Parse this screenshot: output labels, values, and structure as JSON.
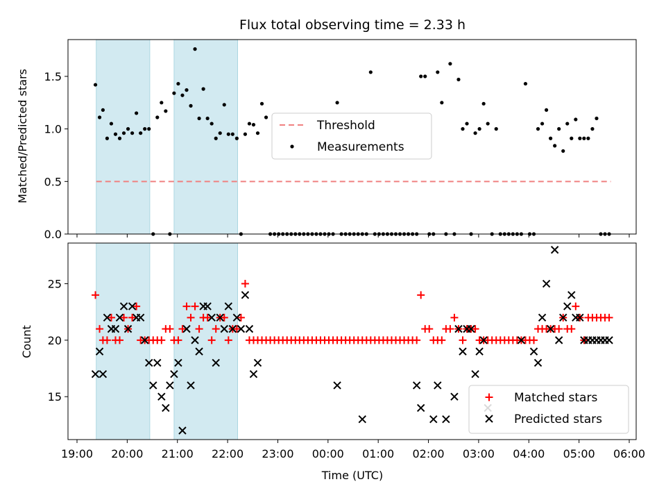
{
  "chart_data": [
    {
      "type": "scatter",
      "title": "Flux total observing time = 2.33 h",
      "ylabel": "Matched/Predicted stars",
      "xlabel": "",
      "xlim": [
        "19:00",
        "06:00"
      ],
      "ylim": [
        0,
        1.85
      ],
      "yticks": [
        0.0,
        0.5,
        1.0,
        1.5
      ],
      "ytick_labels": [
        "0.0",
        "0.5",
        "1.0",
        "1.5"
      ],
      "shaded_intervals": [
        [
          "19:23",
          "20:27"
        ],
        [
          "20:56",
          "22:12"
        ]
      ],
      "legend": {
        "position": "center",
        "entries": [
          "Threshold",
          "Measurements"
        ]
      },
      "series": [
        {
          "name": "Threshold",
          "kind": "dashed-line",
          "color": "#f08080",
          "x": [
            "19:23",
            "05:38"
          ],
          "y": [
            0.5,
            0.5
          ]
        },
        {
          "name": "Measurements",
          "kind": "points",
          "color": "#000000",
          "x": [
            "19:22",
            "19:27",
            "19:31",
            "19:36",
            "19:41",
            "19:46",
            "19:51",
            "19:56",
            "20:01",
            "20:06",
            "20:11",
            "20:16",
            "20:21",
            "20:26",
            "20:31",
            "20:36",
            "20:41",
            "20:46",
            "20:51",
            "20:56",
            "21:01",
            "21:06",
            "21:11",
            "21:16",
            "21:21",
            "21:26",
            "21:31",
            "21:36",
            "21:41",
            "21:46",
            "21:51",
            "21:56",
            "22:01",
            "22:06",
            "22:11",
            "22:16",
            "22:21",
            "22:26",
            "22:31",
            "22:36",
            "22:41",
            "22:46",
            "22:51",
            "22:56",
            "23:01",
            "23:06",
            "23:11",
            "23:16",
            "23:21",
            "23:26",
            "23:31",
            "23:36",
            "23:41",
            "23:46",
            "23:51",
            "23:56",
            "00:01",
            "00:06",
            "00:11",
            "00:16",
            "00:21",
            "00:26",
            "00:31",
            "00:36",
            "00:41",
            "00:46",
            "00:51",
            "00:56",
            "01:01",
            "01:06",
            "01:11",
            "01:16",
            "01:21",
            "01:26",
            "01:31",
            "01:36",
            "01:41",
            "01:46",
            "01:51",
            "01:56",
            "02:01",
            "02:06",
            "02:11",
            "02:16",
            "02:21",
            "02:26",
            "02:31",
            "02:36",
            "02:41",
            "02:46",
            "02:51",
            "02:56",
            "03:01",
            "03:06",
            "03:11",
            "03:16",
            "03:21",
            "03:26",
            "03:31",
            "03:36",
            "03:41",
            "03:46",
            "03:51",
            "03:56",
            "04:01",
            "04:06",
            "04:11",
            "04:16",
            "04:21",
            "04:26",
            "04:31",
            "04:36",
            "04:41",
            "04:46",
            "04:51",
            "04:56",
            "05:01",
            "05:06",
            "05:11",
            "05:16",
            "05:21",
            "05:26",
            "05:31",
            "05:36"
          ],
          "y": [
            1.42,
            1.11,
            1.18,
            0.91,
            1.05,
            0.95,
            0.91,
            0.96,
            1.0,
            0.96,
            1.15,
            0.96,
            1.0,
            1.0,
            0.0,
            1.11,
            1.25,
            1.17,
            0.0,
            1.34,
            1.43,
            1.32,
            1.37,
            1.22,
            1.76,
            1.1,
            1.38,
            1.1,
            1.05,
            0.91,
            0.96,
            1.23,
            0.95,
            0.95,
            0.91,
            0.0,
            0.95,
            1.05,
            1.04,
            0.96,
            1.24,
            1.11,
            0.0,
            0.0,
            0.0,
            0.0,
            0.0,
            0.0,
            0.0,
            0.0,
            0.0,
            0.0,
            0.0,
            0.0,
            0.0,
            0.0,
            0.0,
            0.0,
            1.25,
            0.0,
            0.0,
            0.0,
            0.0,
            0.0,
            0.0,
            0.0,
            1.54,
            0.0,
            0.0,
            0.0,
            0.0,
            0.0,
            0.0,
            0.0,
            0.0,
            0.0,
            0.0,
            0.0,
            1.5,
            1.5,
            0.0,
            0.0,
            1.54,
            1.25,
            0.0,
            1.62,
            0.0,
            1.47,
            1.0,
            1.05,
            0.0,
            0.96,
            1.0,
            1.24,
            1.05,
            0.0,
            1.0,
            0.0,
            0.0,
            0.0,
            0.0,
            0.0,
            0.0,
            1.43,
            0.0,
            0.0,
            1.0,
            1.05,
            1.18,
            0.91,
            0.84,
            1.0,
            0.79,
            1.05,
            0.91,
            1.09,
            0.91,
            0.91,
            0.91,
            1.0,
            1.1,
            0.0,
            0.0,
            0.0
          ]
        }
      ]
    },
    {
      "type": "scatter",
      "title": "",
      "xlabel": "Time (UTC)",
      "ylabel": "Count",
      "xlim": [
        "19:00",
        "06:00"
      ],
      "xtick_labels": [
        "19:00",
        "20:00",
        "21:00",
        "22:00",
        "23:00",
        "00:00",
        "01:00",
        "02:00",
        "03:00",
        "04:00",
        "05:00",
        "06:00"
      ],
      "ylim": [
        11.2,
        28.6
      ],
      "yticks": [
        15,
        20,
        25
      ],
      "ytick_labels": [
        "15",
        "20",
        "25"
      ],
      "shaded_intervals": [
        [
          "19:23",
          "20:27"
        ],
        [
          "20:56",
          "22:12"
        ]
      ],
      "legend": {
        "position": "lower right",
        "entries": [
          "Matched stars",
          "Predicted stars"
        ]
      },
      "series": [
        {
          "name": "Matched stars",
          "marker": "+",
          "color": "#ff0000",
          "x": [
            "19:22",
            "19:27",
            "19:31",
            "19:36",
            "19:41",
            "19:46",
            "19:51",
            "19:56",
            "20:01",
            "20:06",
            "20:11",
            "20:16",
            "20:21",
            "20:26",
            "20:31",
            "20:36",
            "20:41",
            "20:46",
            "20:51",
            "20:56",
            "21:01",
            "21:06",
            "21:11",
            "21:16",
            "21:21",
            "21:26",
            "21:31",
            "21:36",
            "21:41",
            "21:46",
            "21:51",
            "21:56",
            "22:01",
            "22:06",
            "22:11",
            "22:16",
            "22:21",
            "22:26",
            "22:31",
            "22:36",
            "22:41",
            "22:46",
            "22:51",
            "22:56",
            "23:01",
            "23:06",
            "23:11",
            "23:16",
            "23:21",
            "23:26",
            "23:31",
            "23:36",
            "23:41",
            "23:46",
            "23:51",
            "23:56",
            "00:01",
            "00:06",
            "00:11",
            "00:16",
            "00:21",
            "00:26",
            "00:31",
            "00:36",
            "00:41",
            "00:46",
            "00:51",
            "00:56",
            "01:01",
            "01:06",
            "01:11",
            "01:16",
            "01:21",
            "01:26",
            "01:31",
            "01:36",
            "01:41",
            "01:46",
            "01:51",
            "01:56",
            "02:01",
            "02:06",
            "02:11",
            "02:16",
            "02:21",
            "02:26",
            "02:31",
            "02:36",
            "02:41",
            "02:46",
            "02:51",
            "02:56",
            "03:01",
            "03:06",
            "03:11",
            "03:16",
            "03:21",
            "03:26",
            "03:31",
            "03:36",
            "03:41",
            "03:46",
            "03:51",
            "03:56",
            "04:01",
            "04:06",
            "04:11",
            "04:16",
            "04:21",
            "04:26",
            "04:31",
            "04:36",
            "04:41",
            "04:46",
            "04:51",
            "04:56",
            "05:01",
            "05:06",
            "05:11",
            "05:16",
            "05:21",
            "05:26",
            "05:31",
            "05:36"
          ],
          "y": [
            24,
            21,
            20,
            20,
            22,
            20,
            20,
            22,
            21,
            22,
            23,
            20,
            20,
            20,
            20,
            20,
            20,
            21,
            21,
            20,
            20,
            21,
            23,
            22,
            23,
            21,
            22,
            22,
            20,
            21,
            22,
            22,
            20,
            21,
            21,
            22,
            25,
            20,
            20,
            20,
            20,
            20,
            20,
            20,
            20,
            20,
            20,
            20,
            20,
            20,
            20,
            20,
            20,
            20,
            20,
            20,
            20,
            20,
            20,
            20,
            20,
            20,
            20,
            20,
            20,
            20,
            20,
            20,
            20,
            20,
            20,
            20,
            20,
            20,
            20,
            20,
            20,
            20,
            24,
            21,
            21,
            20,
            20,
            20,
            21,
            21,
            22,
            21,
            20,
            21,
            21,
            21,
            20,
            20,
            20,
            20,
            20,
            20,
            20,
            20,
            20,
            20,
            20,
            20,
            20,
            20,
            21,
            21,
            21,
            21,
            21,
            21,
            22,
            21,
            21,
            23,
            22,
            20,
            22,
            22,
            22,
            22,
            22,
            22
          ]
        },
        {
          "name": "Predicted stars",
          "marker": "x",
          "color": "#000000",
          "x": [
            "19:22",
            "19:27",
            "19:31",
            "19:36",
            "19:41",
            "19:46",
            "19:51",
            "19:56",
            "20:01",
            "20:06",
            "20:11",
            "20:16",
            "20:21",
            "20:26",
            "20:31",
            "20:36",
            "20:41",
            "20:46",
            "20:51",
            "20:56",
            "21:01",
            "21:06",
            "21:11",
            "21:16",
            "21:21",
            "21:26",
            "21:31",
            "21:36",
            "21:41",
            "21:46",
            "21:51",
            "21:56",
            "22:01",
            "22:06",
            "22:11",
            "22:16",
            "22:21",
            "22:26",
            "22:31",
            "22:36",
            "00:11",
            "00:41",
            "01:46",
            "01:51",
            "02:06",
            "02:11",
            "02:21",
            "02:31",
            "02:36",
            "02:41",
            "02:46",
            "02:51",
            "02:56",
            "03:01",
            "03:06",
            "03:11",
            "03:51",
            "04:06",
            "04:11",
            "04:16",
            "04:21",
            "04:26",
            "04:31",
            "04:36",
            "04:41",
            "04:46",
            "04:51",
            "04:56",
            "05:01",
            "05:06",
            "05:11",
            "05:16",
            "05:21",
            "05:26",
            "05:31",
            "05:36"
          ],
          "y": [
            17,
            19,
            17,
            22,
            21,
            21,
            22,
            23,
            21,
            23,
            22,
            22,
            20,
            18,
            16,
            18,
            15,
            14,
            16,
            17,
            18,
            12,
            21,
            16,
            20,
            19,
            23,
            23,
            22,
            18,
            22,
            21,
            23,
            21,
            22,
            21,
            24,
            21,
            17,
            18,
            16,
            13,
            16,
            14,
            13,
            16,
            13,
            15,
            21,
            19,
            21,
            21,
            17,
            19,
            20,
            14,
            20,
            19,
            18,
            22,
            25,
            21,
            28,
            20,
            22,
            23,
            24,
            22,
            22,
            20,
            20,
            20,
            20,
            20,
            20,
            20
          ]
        }
      ]
    }
  ]
}
